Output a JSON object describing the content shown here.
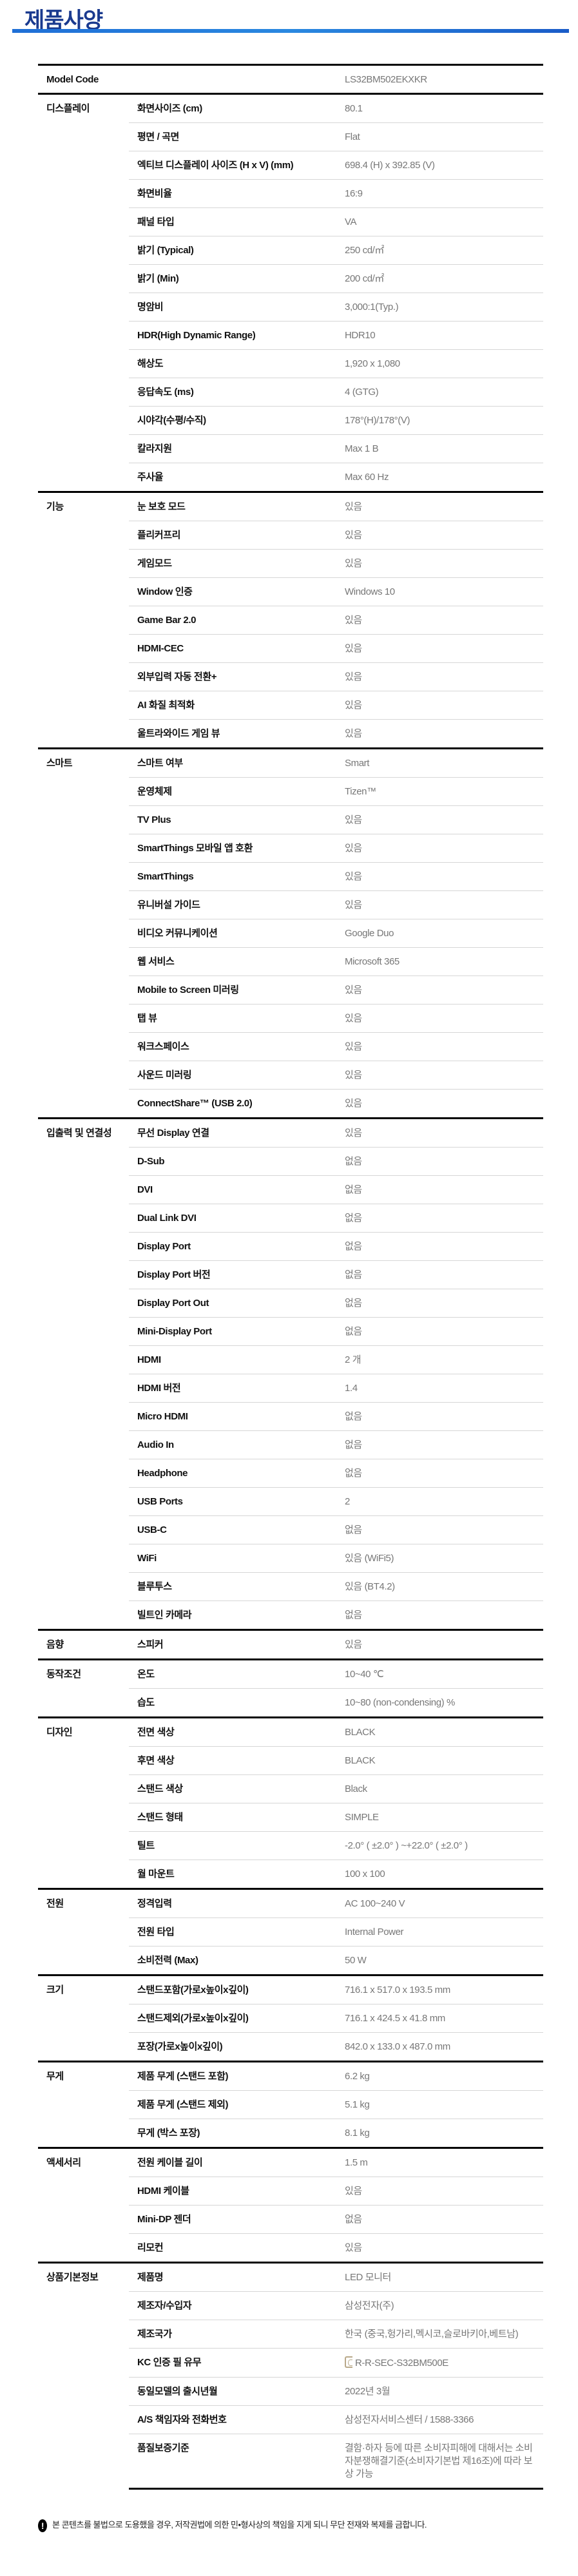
{
  "title": "제품사양",
  "accent_color": "#1f6fd6",
  "model": {
    "label": "Model Code",
    "value": "LS32BM502EKXKR"
  },
  "sections": [
    {
      "category": "디스플레이",
      "rows": [
        [
          "화면사이즈 (cm)",
          "80.1"
        ],
        [
          "평면 / 곡면",
          "Flat"
        ],
        [
          "엑티브 디스플레이 사이즈 (H x V) (mm)",
          "698.4 (H) x 392.85 (V)"
        ],
        [
          "화면비율",
          "16:9"
        ],
        [
          "패널 타입",
          "VA"
        ],
        [
          "밝기 (Typical)",
          "250 cd/㎡"
        ],
        [
          "밝기 (Min)",
          "200 cd/㎡"
        ],
        [
          "명암비",
          "3,000:1(Typ.)"
        ],
        [
          "HDR(High Dynamic Range)",
          "HDR10"
        ],
        [
          "해상도",
          "1,920 x 1,080"
        ],
        [
          "응답속도 (ms)",
          "4 (GTG)"
        ],
        [
          "시야각(수평/수직)",
          "178°(H)/178°(V)"
        ],
        [
          "칼라지원",
          "Max 1 B"
        ],
        [
          "주사율",
          "Max 60 Hz"
        ]
      ]
    },
    {
      "category": "기능",
      "rows": [
        [
          "눈 보호 모드",
          "있음"
        ],
        [
          "플리커프리",
          "있음"
        ],
        [
          "게임모드",
          "있음"
        ],
        [
          "Window 인증",
          "Windows 10"
        ],
        [
          "Game Bar 2.0",
          "있음"
        ],
        [
          "HDMI-CEC",
          "있음"
        ],
        [
          "외부입력 자동 전환+",
          "있음"
        ],
        [
          "AI 화질 최적화",
          "있음"
        ],
        [
          "울트라와이드 게임 뷰",
          "있음"
        ]
      ]
    },
    {
      "category": "스마트",
      "rows": [
        [
          "스마트 여부",
          "Smart"
        ],
        [
          "운영체제",
          "Tizen™"
        ],
        [
          "TV Plus",
          "있음"
        ],
        [
          "SmartThings 모바일 앱 호환",
          "있음"
        ],
        [
          "SmartThings",
          "있음"
        ],
        [
          "유니버설 가이드",
          "있음"
        ],
        [
          "비디오 커뮤니케이션",
          "Google Duo"
        ],
        [
          "웹 서비스",
          "Microsoft 365"
        ],
        [
          "Mobile to Screen 미러링",
          "있음"
        ],
        [
          "탭 뷰",
          "있음"
        ],
        [
          "워크스페이스",
          "있음"
        ],
        [
          "사운드 미러링",
          "있음"
        ],
        [
          "ConnectShare™ (USB 2.0)",
          "있음"
        ]
      ]
    },
    {
      "category": "입출력 및 연결성",
      "rows": [
        [
          "무선 Display 연결",
          "있음"
        ],
        [
          "D-Sub",
          "없음"
        ],
        [
          "DVI",
          "없음"
        ],
        [
          "Dual Link DVI",
          "없음"
        ],
        [
          "Display Port",
          "없음"
        ],
        [
          "Display Port 버전",
          "없음"
        ],
        [
          "Display Port Out",
          "없음"
        ],
        [
          "Mini-Display Port",
          "없음"
        ],
        [
          "HDMI",
          "2 개"
        ],
        [
          "HDMI 버전",
          "1.4"
        ],
        [
          "Micro HDMI",
          "없음"
        ],
        [
          "Audio In",
          "없음"
        ],
        [
          "Headphone",
          "없음"
        ],
        [
          "USB Ports",
          "2"
        ],
        [
          "USB-C",
          "없음"
        ],
        [
          "WiFi",
          "있음 (WiFi5)"
        ],
        [
          "블루투스",
          "있음 (BT4.2)"
        ],
        [
          "빌트인 카메라",
          "없음"
        ]
      ]
    },
    {
      "category": "음향",
      "rows": [
        [
          "스피커",
          "있음"
        ]
      ]
    },
    {
      "category": "동작조건",
      "rows": [
        [
          "온도",
          "10~40 ℃"
        ],
        [
          "습도",
          "10~80 (non-condensing) %"
        ]
      ]
    },
    {
      "category": "디자인",
      "rows": [
        [
          "전면 색상",
          "BLACK"
        ],
        [
          "후면 색상",
          "BLACK"
        ],
        [
          "스탠드 색상",
          "Black"
        ],
        [
          "스탠드 형태",
          "SIMPLE"
        ],
        [
          "틸트",
          "-2.0° ( ±2.0° ) ~+22.0° ( ±2.0° )"
        ],
        [
          "월 마운트",
          "100 x 100"
        ]
      ]
    },
    {
      "category": "전원",
      "rows": [
        [
          "정격입력",
          "AC 100~240 V"
        ],
        [
          "전원 타입",
          "Internal Power"
        ],
        [
          "소비전력 (Max)",
          "50 W"
        ]
      ]
    },
    {
      "category": "크기",
      "rows": [
        [
          "스탠드포함(가로x높이x깊이)",
          "716.1 x 517.0 x 193.5 mm"
        ],
        [
          "스탠드제외(가로x높이x깊이)",
          "716.1 x 424.5 x 41.8 mm"
        ],
        [
          "포장(가로x높이x깊이)",
          "842.0 x 133.0 x 487.0 mm"
        ]
      ]
    },
    {
      "category": "무게",
      "rows": [
        [
          "제품 무게 (스탠드 포함)",
          "6.2 kg"
        ],
        [
          "제품 무게 (스탠드 제외)",
          "5.1 kg"
        ],
        [
          "무게 (박스 포장)",
          "8.1 kg"
        ]
      ]
    },
    {
      "category": "액세서리",
      "rows": [
        [
          "전원 케이블 길이",
          "1.5 m"
        ],
        [
          "HDMI 케이블",
          "있음"
        ],
        [
          "Mini-DP 젠더",
          "없음"
        ],
        [
          "리모컨",
          "있음"
        ]
      ]
    },
    {
      "category": "상품기본정보",
      "rows": [
        [
          "제품명",
          "LED 모니터"
        ],
        [
          "제조자/수입자",
          "삼성전자(주)"
        ],
        [
          "제조국가",
          "한국 (중국,헝가리,멕시코,슬로바키아,베트남)"
        ],
        [
          "KC 인증 필 유무",
          "R-R-SEC-S32BM500E"
        ],
        [
          "동일모델의 출시년월",
          "2022년 3월"
        ],
        [
          "A/S 책임자와 전화번호",
          "삼성전자서비스센터 / 1588-3366"
        ],
        [
          "품질보증기준",
          "결함·하자 등에 따른 소비자피해에 대해서는 소비자분쟁해결기준(소비자기본법 제16조)에 따라 보상 가능"
        ]
      ]
    }
  ],
  "kc_icon": "kc-certification-mark-icon",
  "footer_note": {
    "icon": "exclamation-icon",
    "text": "본 콘텐츠를 불법으로 도용했을 경우, 저작권법에 의한 민•형사상의 책임을 지게 되니 무단 전재와 복제를 금합니다."
  }
}
